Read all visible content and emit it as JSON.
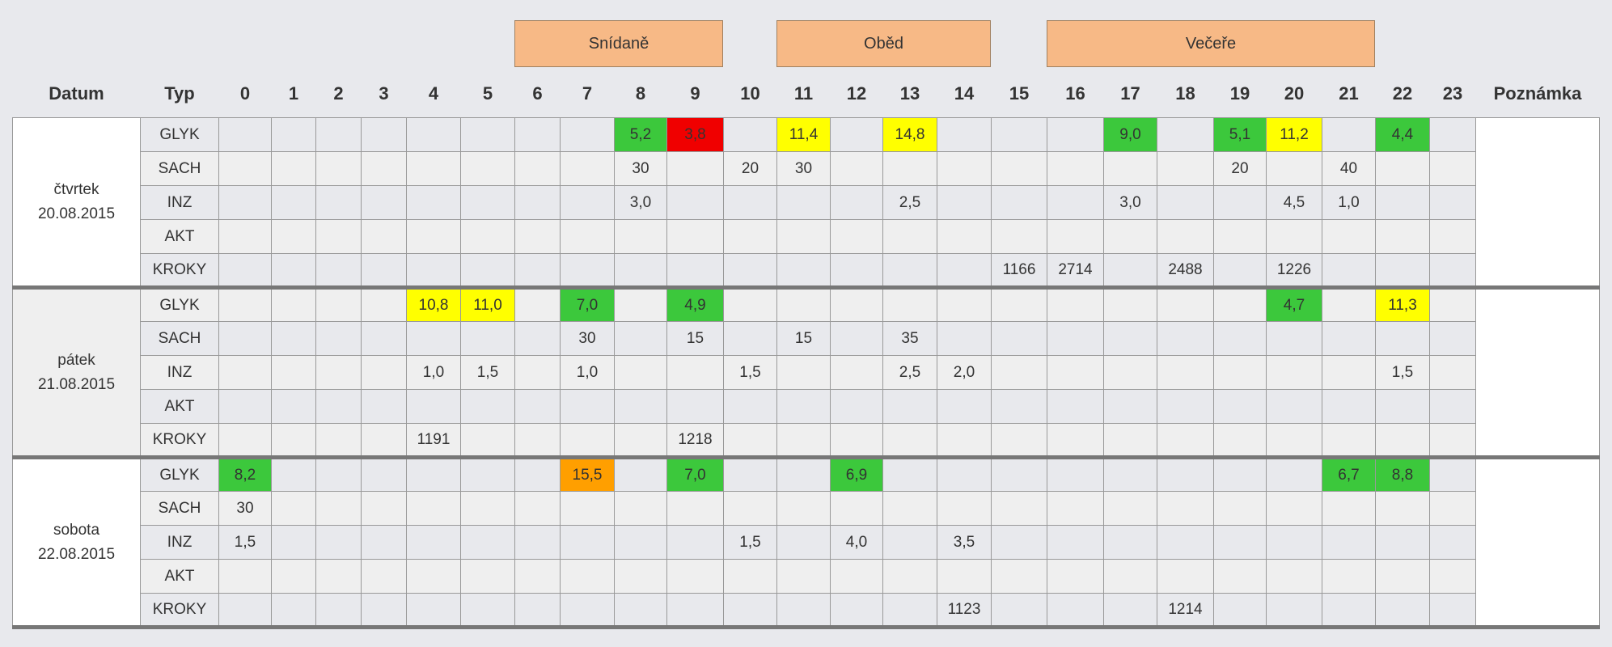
{
  "meals": [
    "Snídaně",
    "Oběd",
    "Večeře"
  ],
  "header": {
    "date": "Datum",
    "type": "Typ",
    "hours": [
      "0",
      "1",
      "2",
      "3",
      "4",
      "5",
      "6",
      "7",
      "8",
      "9",
      "10",
      "11",
      "12",
      "13",
      "14",
      "15",
      "16",
      "17",
      "18",
      "19",
      "20",
      "21",
      "22",
      "23"
    ],
    "note": "Poznámka"
  },
  "days": [
    {
      "weekday": "čtvrtek",
      "date": "20.08.2015",
      "rows": [
        {
          "type": "GLYK",
          "cells": [
            null,
            null,
            null,
            null,
            null,
            null,
            null,
            null,
            "5,2",
            "3,8",
            null,
            "11,4",
            null,
            "14,8",
            null,
            null,
            null,
            "9,0",
            null,
            "5,1",
            "11,2",
            null,
            "4,4",
            null
          ],
          "colors": [
            null,
            null,
            null,
            null,
            null,
            null,
            null,
            null,
            "#3cc83c",
            "#f00000",
            null,
            "#ffff00",
            null,
            "#ffff00",
            null,
            null,
            null,
            "#3cc83c",
            null,
            "#3cc83c",
            "#ffff00",
            null,
            "#3cc83c",
            null
          ]
        },
        {
          "type": "SACH",
          "cells": [
            null,
            null,
            null,
            null,
            null,
            null,
            null,
            null,
            "30",
            null,
            "20",
            "30",
            null,
            null,
            null,
            null,
            null,
            null,
            null,
            "20",
            null,
            "40",
            null,
            null
          ]
        },
        {
          "type": "INZ",
          "cells": [
            null,
            null,
            null,
            null,
            null,
            null,
            null,
            null,
            "3,0",
            null,
            null,
            null,
            null,
            "2,5",
            null,
            null,
            null,
            "3,0",
            null,
            null,
            "4,5",
            "1,0",
            null,
            null
          ]
        },
        {
          "type": "AKT",
          "cells": [
            null,
            null,
            null,
            null,
            null,
            null,
            null,
            null,
            null,
            null,
            null,
            null,
            null,
            null,
            null,
            null,
            null,
            null,
            null,
            null,
            null,
            null,
            null,
            null
          ]
        },
        {
          "type": "KROKY",
          "cells": [
            null,
            null,
            null,
            null,
            null,
            null,
            null,
            null,
            null,
            null,
            null,
            null,
            null,
            null,
            null,
            "1166",
            "2714",
            null,
            "2488",
            null,
            "1226",
            null,
            null,
            null
          ]
        }
      ]
    },
    {
      "weekday": "pátek",
      "date": "21.08.2015",
      "rows": [
        {
          "type": "GLYK",
          "cells": [
            null,
            null,
            null,
            null,
            "10,8",
            "11,0",
            null,
            "7,0",
            null,
            "4,9",
            null,
            null,
            null,
            null,
            null,
            null,
            null,
            null,
            null,
            null,
            "4,7",
            null,
            "11,3",
            null
          ],
          "colors": [
            null,
            null,
            null,
            null,
            "#ffff00",
            "#ffff00",
            null,
            "#3cc83c",
            null,
            "#3cc83c",
            null,
            null,
            null,
            null,
            null,
            null,
            null,
            null,
            null,
            null,
            "#3cc83c",
            null,
            "#ffff00",
            null
          ]
        },
        {
          "type": "SACH",
          "cells": [
            null,
            null,
            null,
            null,
            null,
            null,
            null,
            "30",
            null,
            "15",
            null,
            "15",
            null,
            "35",
            null,
            null,
            null,
            null,
            null,
            null,
            null,
            null,
            null,
            null
          ]
        },
        {
          "type": "INZ",
          "cells": [
            null,
            null,
            null,
            null,
            "1,0",
            "1,5",
            null,
            "1,0",
            null,
            null,
            "1,5",
            null,
            null,
            "2,5",
            "2,0",
            null,
            null,
            null,
            null,
            null,
            null,
            null,
            "1,5",
            null
          ]
        },
        {
          "type": "AKT",
          "cells": [
            null,
            null,
            null,
            null,
            null,
            null,
            null,
            null,
            null,
            null,
            null,
            null,
            null,
            null,
            null,
            null,
            null,
            null,
            null,
            null,
            null,
            null,
            null,
            null
          ]
        },
        {
          "type": "KROKY",
          "cells": [
            null,
            null,
            null,
            null,
            "1191",
            null,
            null,
            null,
            null,
            "1218",
            null,
            null,
            null,
            null,
            null,
            null,
            null,
            null,
            null,
            null,
            null,
            null,
            null,
            null
          ]
        }
      ]
    },
    {
      "weekday": "sobota",
      "date": "22.08.2015",
      "rows": [
        {
          "type": "GLYK",
          "cells": [
            "8,2",
            null,
            null,
            null,
            null,
            null,
            null,
            "15,5",
            null,
            "7,0",
            null,
            null,
            "6,9",
            null,
            null,
            null,
            null,
            null,
            null,
            null,
            null,
            "6,7",
            "8,8",
            null
          ],
          "colors": [
            "#3cc83c",
            null,
            null,
            null,
            null,
            null,
            null,
            "#ff9f00",
            null,
            "#3cc83c",
            null,
            null,
            "#3cc83c",
            null,
            null,
            null,
            null,
            null,
            null,
            null,
            null,
            "#3cc83c",
            "#3cc83c",
            null
          ]
        },
        {
          "type": "SACH",
          "cells": [
            "30",
            null,
            null,
            null,
            null,
            null,
            null,
            null,
            null,
            null,
            null,
            null,
            null,
            null,
            null,
            null,
            null,
            null,
            null,
            null,
            null,
            null,
            null,
            null
          ]
        },
        {
          "type": "INZ",
          "cells": [
            "1,5",
            null,
            null,
            null,
            null,
            null,
            null,
            null,
            null,
            null,
            "1,5",
            null,
            "4,0",
            null,
            "3,5",
            null,
            null,
            null,
            null,
            null,
            null,
            null,
            null,
            null
          ]
        },
        {
          "type": "AKT",
          "cells": [
            null,
            null,
            null,
            null,
            null,
            null,
            null,
            null,
            null,
            null,
            null,
            null,
            null,
            null,
            null,
            null,
            null,
            null,
            null,
            null,
            null,
            null,
            null,
            null
          ]
        },
        {
          "type": "KROKY",
          "cells": [
            null,
            null,
            null,
            null,
            null,
            null,
            null,
            null,
            null,
            null,
            null,
            null,
            null,
            null,
            "1123",
            null,
            null,
            null,
            "1214",
            null,
            null,
            null,
            null,
            null
          ]
        }
      ]
    }
  ]
}
